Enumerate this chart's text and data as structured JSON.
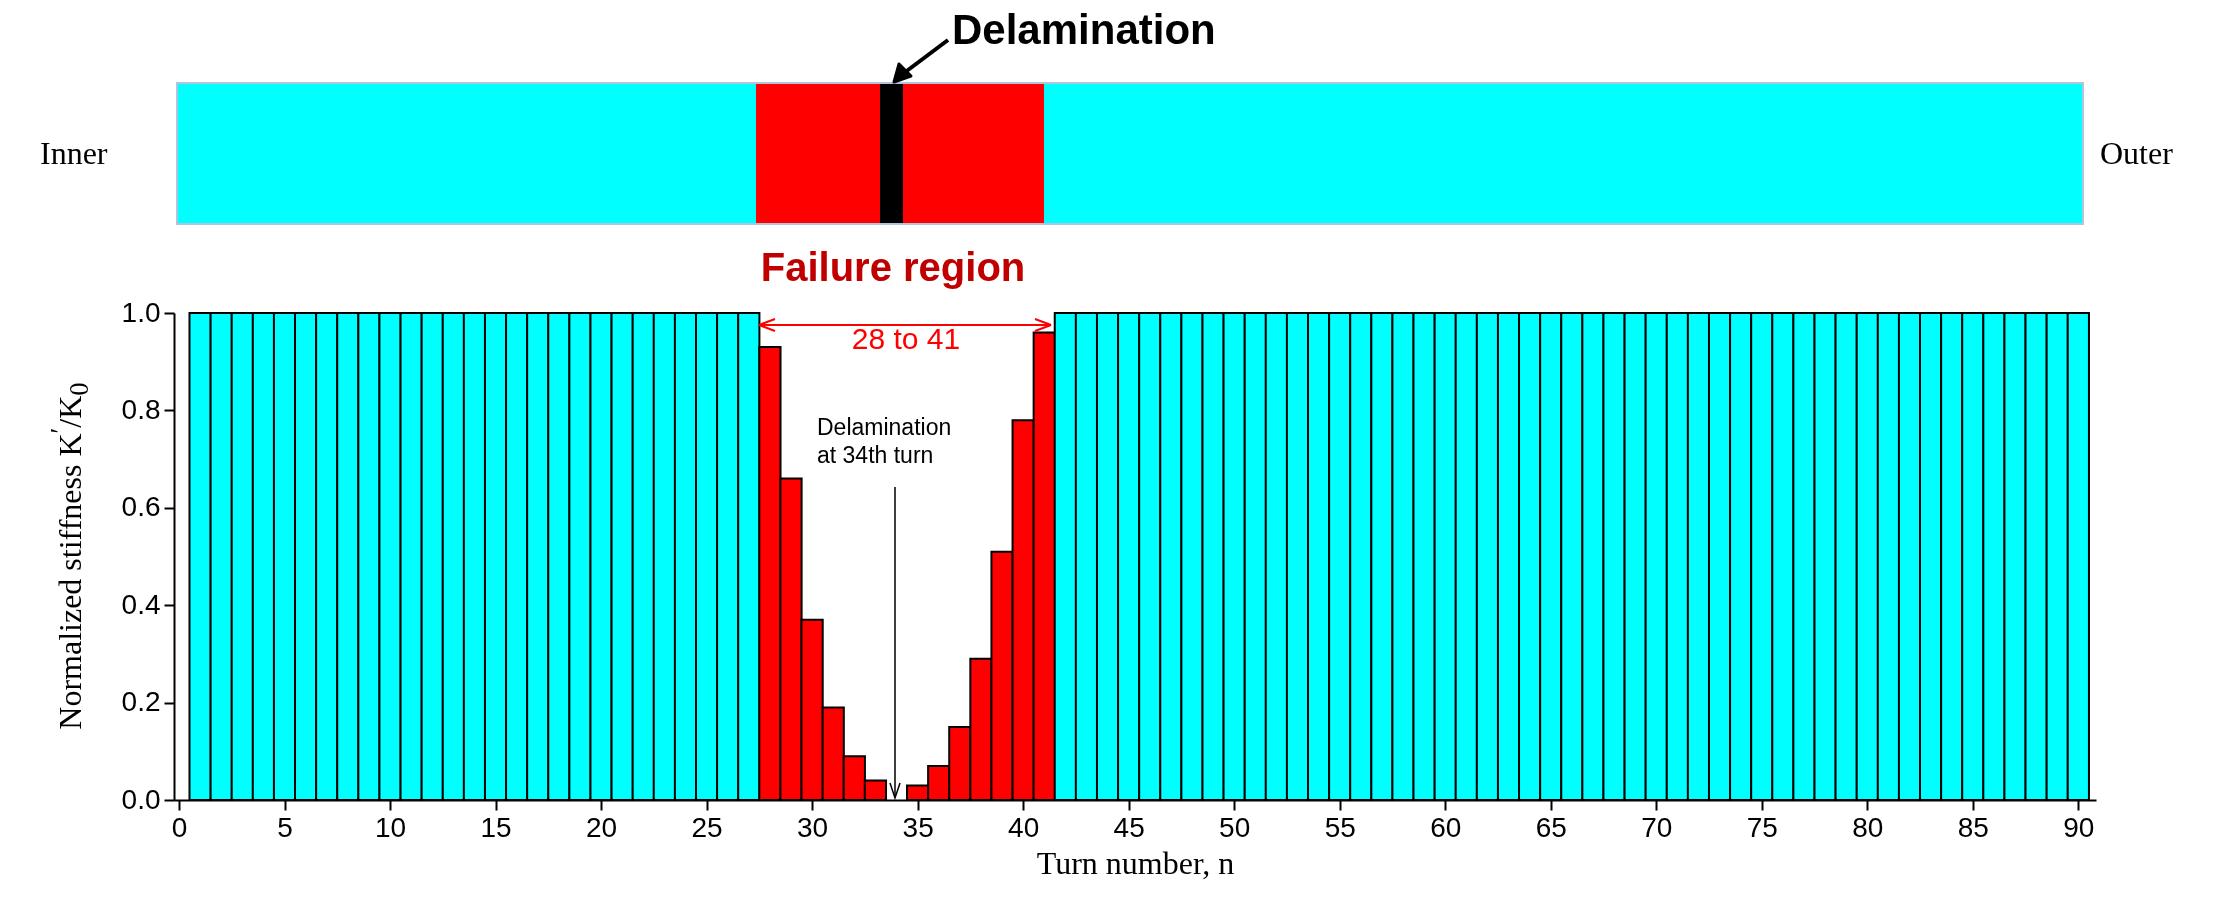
{
  "chart_data": {
    "type": "bar",
    "xlabel": "Turn number, n",
    "ylabel": "Normalized stiffness K$^{′}$/K$_{0}$",
    "x": [
      1,
      2,
      3,
      4,
      5,
      6,
      7,
      8,
      9,
      10,
      11,
      12,
      13,
      14,
      15,
      16,
      17,
      18,
      19,
      20,
      21,
      22,
      23,
      24,
      25,
      26,
      27,
      28,
      29,
      30,
      31,
      32,
      33,
      34,
      35,
      36,
      37,
      38,
      39,
      40,
      41,
      42,
      43,
      44,
      45,
      46,
      47,
      48,
      49,
      50,
      51,
      52,
      53,
      54,
      55,
      56,
      57,
      58,
      59,
      60,
      61,
      62,
      63,
      64,
      65,
      66,
      67,
      68,
      69,
      70,
      71,
      72,
      73,
      74,
      75,
      76,
      77,
      78,
      79,
      80,
      81,
      82,
      83,
      84,
      85,
      86,
      87,
      88,
      89,
      90
    ],
    "values": [
      1,
      1,
      1,
      1,
      1,
      1,
      1,
      1,
      1,
      1,
      1,
      1,
      1,
      1,
      1,
      1,
      1,
      1,
      1,
      1,
      1,
      1,
      1,
      1,
      1,
      1,
      1,
      0.93,
      0.66,
      0.37,
      0.19,
      0.09,
      0.04,
      null,
      0.03,
      0.07,
      0.15,
      0.29,
      0.51,
      0.78,
      0.96,
      1,
      1,
      1,
      1,
      1,
      1,
      1,
      1,
      1,
      1,
      1,
      1,
      1,
      1,
      1,
      1,
      1,
      1,
      1,
      1,
      1,
      1,
      1,
      1,
      1,
      1,
      1,
      1,
      1,
      1,
      1,
      1,
      1,
      1,
      1,
      1,
      1,
      1,
      1,
      1,
      1,
      1,
      1,
      1,
      1,
      1,
      1,
      1,
      1
    ],
    "colors": [
      "#00ffff",
      "#00ffff",
      "#00ffff",
      "#00ffff",
      "#00ffff",
      "#00ffff",
      "#00ffff",
      "#00ffff",
      "#00ffff",
      "#00ffff",
      "#00ffff",
      "#00ffff",
      "#00ffff",
      "#00ffff",
      "#00ffff",
      "#00ffff",
      "#00ffff",
      "#00ffff",
      "#00ffff",
      "#00ffff",
      "#00ffff",
      "#00ffff",
      "#00ffff",
      "#00ffff",
      "#00ffff",
      "#00ffff",
      "#00ffff",
      "#ff0000",
      "#ff0000",
      "#ff0000",
      "#ff0000",
      "#ff0000",
      "#ff0000",
      null,
      "#ff0000",
      "#ff0000",
      "#ff0000",
      "#ff0000",
      "#ff0000",
      "#ff0000",
      "#ff0000",
      "#00ffff",
      "#00ffff",
      "#00ffff",
      "#00ffff",
      "#00ffff",
      "#00ffff",
      "#00ffff",
      "#00ffff",
      "#00ffff",
      "#00ffff",
      "#00ffff",
      "#00ffff",
      "#00ffff",
      "#00ffff",
      "#00ffff",
      "#00ffff",
      "#00ffff",
      "#00ffff",
      "#00ffff",
      "#00ffff",
      "#00ffff",
      "#00ffff",
      "#00ffff",
      "#00ffff",
      "#00ffff",
      "#00ffff",
      "#00ffff",
      "#00ffff",
      "#00ffff",
      "#00ffff",
      "#00ffff",
      "#00ffff",
      "#00ffff",
      "#00ffff",
      "#00ffff",
      "#00ffff",
      "#00ffff",
      "#00ffff",
      "#00ffff",
      "#00ffff",
      "#00ffff",
      "#00ffff",
      "#00ffff",
      "#00ffff",
      "#00ffff",
      "#00ffff",
      "#00ffff",
      "#00ffff",
      "#00ffff"
    ],
    "xlim": [
      0,
      90.6
    ],
    "xticks": [
      0,
      5,
      10,
      15,
      20,
      25,
      30,
      35,
      40,
      45,
      50,
      55,
      60,
      65,
      70,
      75,
      80,
      85,
      90
    ],
    "ylim": [
      0,
      1
    ],
    "yticks": [
      {
        "value": 0,
        "label": "0.0"
      },
      {
        "value": 0.2,
        "label": "0.2"
      },
      {
        "value": 0.4,
        "label": "0.4"
      },
      {
        "value": 0.6,
        "label": "0.6"
      },
      {
        "value": 0.8,
        "label": "0.8"
      },
      {
        "value": 1,
        "label": "1.0"
      }
    ],
    "annotations": [
      "Inner",
      "Outer",
      "Delamination",
      "Failure region",
      "28 to 41",
      "Delamination at 34th turn"
    ]
  }
}
